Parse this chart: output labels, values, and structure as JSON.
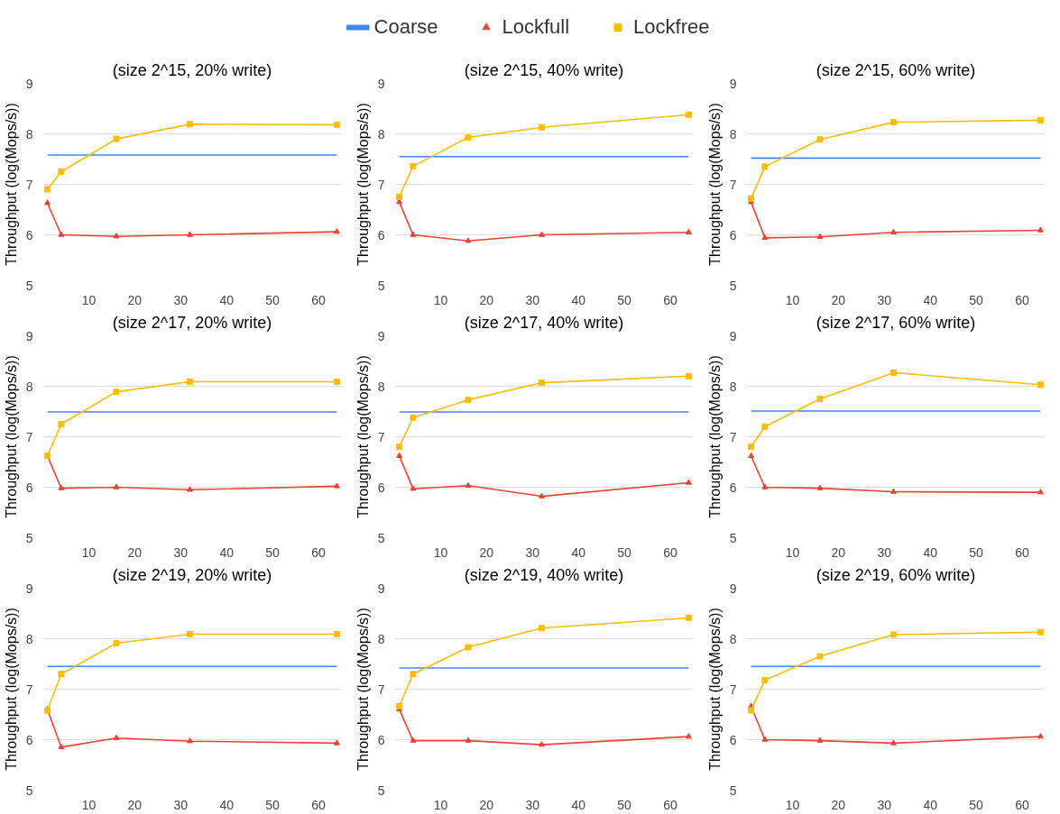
{
  "chart_data": [
    {
      "type": "line",
      "title": "(size 2^15, 20% write)",
      "ylabel": "Throughput (log(Mops/s))",
      "x": [
        1,
        4,
        16,
        32,
        64
      ],
      "xlim": [
        0,
        65
      ],
      "xticks": [
        10,
        20,
        30,
        40,
        50,
        60
      ],
      "ylim": [
        5,
        9
      ],
      "yticks": [
        5,
        6,
        7,
        8,
        9
      ],
      "grid": "y",
      "legend": "top",
      "series": [
        {
          "name": "Coarse",
          "color": "#4285f4",
          "marker": "none",
          "values": [
            7.58,
            7.58,
            7.58,
            7.58,
            7.58
          ]
        },
        {
          "name": "Lockfull",
          "color": "#ea4335",
          "marker": "triangle",
          "values": [
            6.63,
            6.0,
            5.97,
            6.0,
            6.06
          ]
        },
        {
          "name": "Lockfree",
          "color": "#fbbc04",
          "marker": "square",
          "values": [
            6.9,
            7.25,
            7.9,
            8.19,
            8.18
          ]
        }
      ]
    },
    {
      "type": "line",
      "title": "(size 2^15, 40% write)",
      "ylabel": "Throughput (log(Mops/s))",
      "x": [
        1,
        4,
        16,
        32,
        64
      ],
      "xlim": [
        0,
        65
      ],
      "xticks": [
        10,
        20,
        30,
        40,
        50,
        60
      ],
      "ylim": [
        5,
        9
      ],
      "yticks": [
        5,
        6,
        7,
        8,
        9
      ],
      "grid": "y",
      "series": [
        {
          "color": "#4285f4",
          "marker": "none",
          "values": [
            7.55,
            7.55,
            7.55,
            7.55,
            7.55
          ]
        },
        {
          "color": "#ea4335",
          "marker": "triangle",
          "values": [
            6.65,
            6.0,
            5.88,
            6.0,
            6.05
          ]
        },
        {
          "color": "#fbbc04",
          "marker": "square",
          "values": [
            6.75,
            7.36,
            7.93,
            8.13,
            8.38
          ]
        }
      ]
    },
    {
      "type": "line",
      "title": "(size 2^15, 60% write)",
      "ylabel": "Throughput (log(Mops/s))",
      "x": [
        1,
        4,
        16,
        32,
        64
      ],
      "xlim": [
        0,
        65
      ],
      "xticks": [
        10,
        20,
        30,
        40,
        50,
        60
      ],
      "ylim": [
        5,
        9
      ],
      "yticks": [
        5,
        6,
        7,
        8,
        9
      ],
      "grid": "y",
      "series": [
        {
          "color": "#4285f4",
          "marker": "none",
          "values": [
            7.52,
            7.52,
            7.52,
            7.52,
            7.52
          ]
        },
        {
          "color": "#ea4335",
          "marker": "triangle",
          "values": [
            6.65,
            5.94,
            5.96,
            6.05,
            6.09
          ]
        },
        {
          "color": "#fbbc04",
          "marker": "square",
          "values": [
            6.72,
            7.35,
            7.89,
            8.23,
            8.27
          ]
        }
      ]
    },
    {
      "type": "line",
      "title": "(size 2^17, 20% write)",
      "ylabel": "Throughput (log(Mops/s))",
      "x": [
        1,
        4,
        16,
        32,
        64
      ],
      "xlim": [
        0,
        65
      ],
      "xticks": [
        10,
        20,
        30,
        40,
        50,
        60
      ],
      "ylim": [
        5,
        9
      ],
      "yticks": [
        5,
        6,
        7,
        8,
        9
      ],
      "grid": "y",
      "series": [
        {
          "color": "#4285f4",
          "marker": "none",
          "values": [
            7.49,
            7.49,
            7.49,
            7.49,
            7.49
          ]
        },
        {
          "color": "#ea4335",
          "marker": "triangle",
          "values": [
            6.62,
            5.98,
            6.0,
            5.95,
            6.02
          ]
        },
        {
          "color": "#fbbc04",
          "marker": "square",
          "values": [
            6.62,
            7.25,
            7.89,
            8.09,
            8.09
          ]
        }
      ]
    },
    {
      "type": "line",
      "title": "(size 2^17, 40% write)",
      "ylabel": "Throughput (log(Mops/s))",
      "x": [
        1,
        4,
        16,
        32,
        64
      ],
      "xlim": [
        0,
        65
      ],
      "xticks": [
        10,
        20,
        30,
        40,
        50,
        60
      ],
      "ylim": [
        5,
        9
      ],
      "yticks": [
        5,
        6,
        7,
        8,
        9
      ],
      "grid": "y",
      "series": [
        {
          "color": "#4285f4",
          "marker": "none",
          "values": [
            7.49,
            7.49,
            7.49,
            7.49,
            7.49
          ]
        },
        {
          "color": "#ea4335",
          "marker": "triangle",
          "values": [
            6.62,
            5.97,
            6.03,
            5.82,
            6.09
          ]
        },
        {
          "color": "#fbbc04",
          "marker": "square",
          "values": [
            6.8,
            7.38,
            7.73,
            8.07,
            8.2
          ]
        }
      ]
    },
    {
      "type": "line",
      "title": "(size 2^17, 60% write)",
      "ylabel": "Throughput (log(Mops/s))",
      "x": [
        1,
        4,
        16,
        32,
        64
      ],
      "xlim": [
        0,
        65
      ],
      "xticks": [
        10,
        20,
        30,
        40,
        50,
        60
      ],
      "ylim": [
        5,
        9
      ],
      "yticks": [
        5,
        6,
        7,
        8,
        9
      ],
      "grid": "y",
      "series": [
        {
          "color": "#4285f4",
          "marker": "none",
          "values": [
            7.51,
            7.51,
            7.51,
            7.51,
            7.51
          ]
        },
        {
          "color": "#ea4335",
          "marker": "triangle",
          "values": [
            6.62,
            6.0,
            5.98,
            5.91,
            5.9
          ]
        },
        {
          "color": "#fbbc04",
          "marker": "square",
          "values": [
            6.8,
            7.2,
            7.75,
            8.27,
            8.03
          ]
        }
      ]
    },
    {
      "type": "line",
      "title": "(size 2^19, 20% write)",
      "ylabel": "Throughput (log(Mops/s))",
      "x": [
        1,
        4,
        16,
        32,
        64
      ],
      "xlim": [
        0,
        65
      ],
      "xticks": [
        10,
        20,
        30,
        40,
        50,
        60
      ],
      "ylim": [
        5,
        9
      ],
      "yticks": [
        5,
        6,
        7,
        8,
        9
      ],
      "grid": "y",
      "series": [
        {
          "color": "#4285f4",
          "marker": "none",
          "values": [
            7.45,
            7.45,
            7.45,
            7.45,
            7.45
          ]
        },
        {
          "color": "#ea4335",
          "marker": "triangle",
          "values": [
            6.6,
            5.85,
            6.03,
            5.97,
            5.93
          ]
        },
        {
          "color": "#fbbc04",
          "marker": "square",
          "values": [
            6.58,
            7.3,
            7.91,
            8.09,
            8.09
          ]
        }
      ]
    },
    {
      "type": "line",
      "title": "(size 2^19, 40% write)",
      "ylabel": "Throughput (log(Mops/s))",
      "x": [
        1,
        4,
        16,
        32,
        64
      ],
      "xlim": [
        0,
        65
      ],
      "xticks": [
        10,
        20,
        30,
        40,
        50,
        60
      ],
      "ylim": [
        5,
        9
      ],
      "yticks": [
        5,
        6,
        7,
        8,
        9
      ],
      "grid": "y",
      "series": [
        {
          "color": "#4285f4",
          "marker": "none",
          "values": [
            7.42,
            7.42,
            7.42,
            7.42,
            7.42
          ]
        },
        {
          "color": "#ea4335",
          "marker": "triangle",
          "values": [
            6.6,
            5.98,
            5.98,
            5.9,
            6.06
          ]
        },
        {
          "color": "#fbbc04",
          "marker": "square",
          "values": [
            6.66,
            7.3,
            7.83,
            8.21,
            8.41
          ]
        }
      ]
    },
    {
      "type": "line",
      "title": "(size 2^19, 60% write)",
      "ylabel": "Throughput (log(Mops/s))",
      "x": [
        1,
        4,
        16,
        32,
        64
      ],
      "xlim": [
        0,
        65
      ],
      "xticks": [
        10,
        20,
        30,
        40,
        50,
        60
      ],
      "ylim": [
        5,
        9
      ],
      "yticks": [
        5,
        6,
        7,
        8,
        9
      ],
      "grid": "y",
      "series": [
        {
          "color": "#4285f4",
          "marker": "none",
          "values": [
            7.45,
            7.45,
            7.45,
            7.45,
            7.45
          ]
        },
        {
          "color": "#ea4335",
          "marker": "triangle",
          "values": [
            6.66,
            6.0,
            5.98,
            5.93,
            6.06
          ]
        },
        {
          "color": "#fbbc04",
          "marker": "square",
          "values": [
            6.58,
            7.18,
            7.65,
            8.08,
            8.13
          ]
        }
      ]
    }
  ]
}
